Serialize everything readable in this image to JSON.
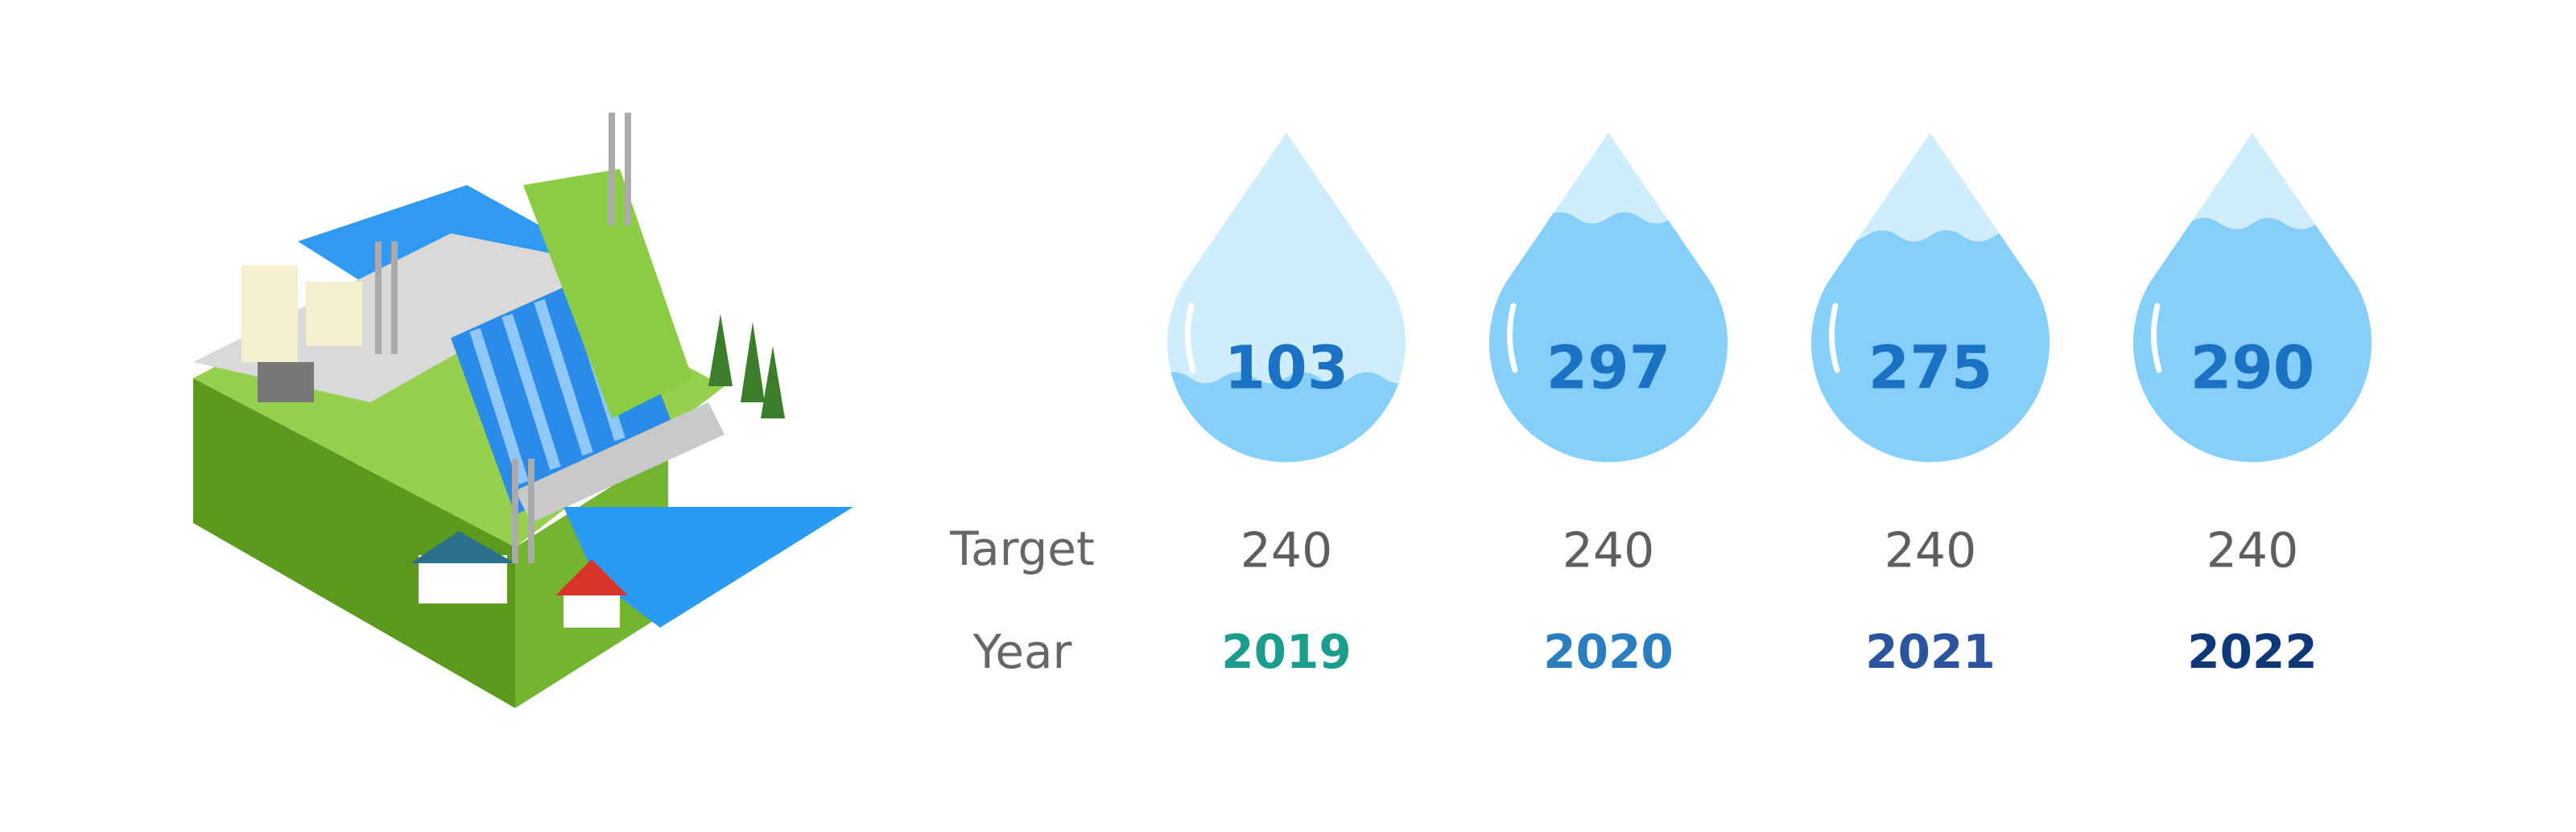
{
  "chart_data": {
    "type": "water-drop",
    "categories": [
      "2019",
      "2020",
      "2021",
      "2022"
    ],
    "values": [
      103,
      297,
      275,
      290
    ],
    "target_label": "Target",
    "targets": [
      240,
      240,
      240,
      240
    ],
    "year_label": "Year",
    "year_colors": [
      "#1c9c8c",
      "#2a7ec0",
      "#2c539e",
      "#0e3877"
    ],
    "ylim": [
      0,
      400
    ],
    "drop_color": "#cfedfc",
    "fill_color": "#86cffa",
    "value_color": "#1b71c2"
  }
}
